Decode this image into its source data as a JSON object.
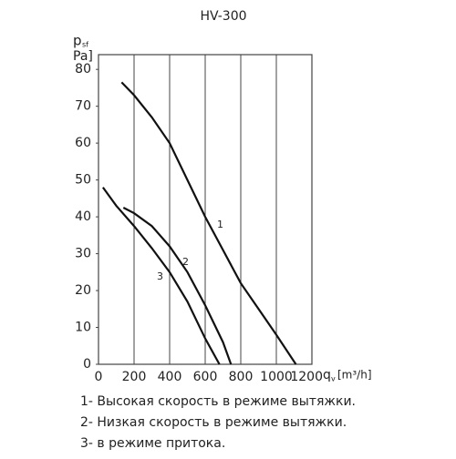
{
  "chart_data": {
    "type": "line",
    "title": "HV-300",
    "y_label": {
      "main": "p",
      "sub": "sf",
      "unit": "Pa]"
    },
    "x_label": {
      "main": "q",
      "sub": "v",
      "unit": "[m³/h]"
    },
    "xlim": [
      0,
      1200
    ],
    "xticks": [
      0,
      200,
      400,
      600,
      800,
      1000,
      1200
    ],
    "ylim": [
      0,
      84
    ],
    "yticks": [
      0,
      10,
      20,
      30,
      40,
      50,
      60,
      70,
      80
    ],
    "grid": true,
    "series": [
      {
        "name": "1",
        "color": "#111",
        "x": [
          130,
          200,
          300,
          400,
          500,
          600,
          700,
          800,
          900,
          1000,
          1110
        ],
        "values": [
          76.5,
          73,
          67,
          60,
          50,
          40,
          31,
          22,
          15,
          8,
          0
        ]
      },
      {
        "name": "2",
        "color": "#111",
        "x": [
          140,
          200,
          300,
          400,
          500,
          600,
          700,
          745
        ],
        "values": [
          42.5,
          41,
          37.5,
          32,
          25,
          16,
          6,
          0
        ]
      },
      {
        "name": "3",
        "color": "#111",
        "x": [
          25,
          100,
          200,
          300,
          400,
          500,
          600,
          680
        ],
        "values": [
          48,
          43,
          37.5,
          31.5,
          25,
          17,
          7,
          0
        ]
      }
    ],
    "legend_lines": [
      "1- Высокая скорость в режиме вытяжки.",
      "2- Низкая скорость в режиме вытяжки.",
      "3- в режиме притока."
    ]
  }
}
